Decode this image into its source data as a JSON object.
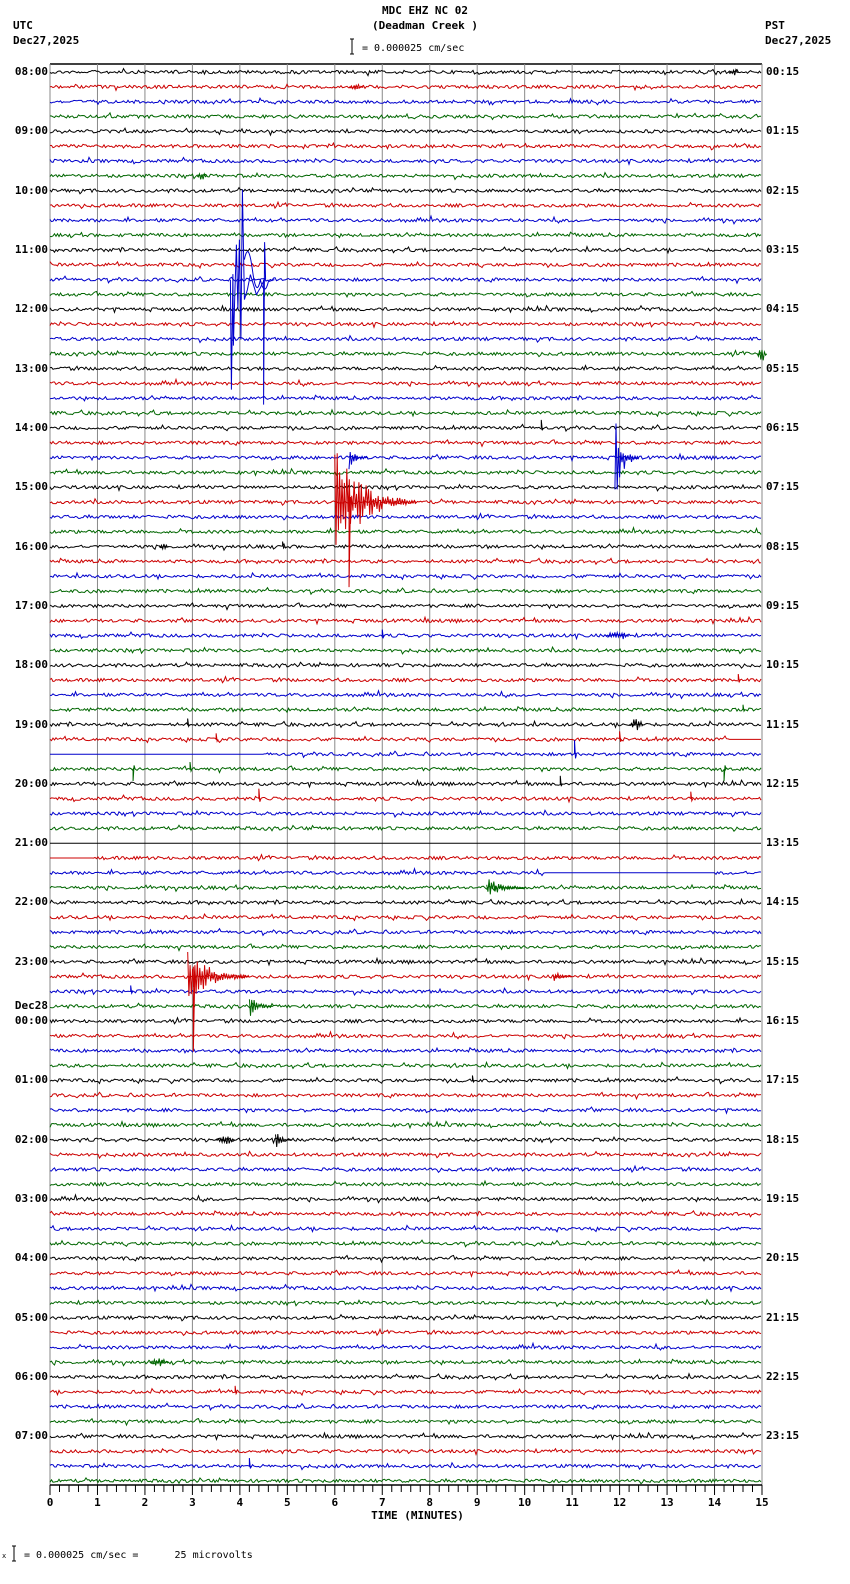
{
  "header": {
    "station": "MDC EHZ NC 02",
    "site": "(Deadman Creek )",
    "left_tz": "UTC",
    "left_date": "Dec27,2025",
    "right_tz": "PST",
    "right_date": "Dec27,2025",
    "scale_text": "= 0.000025 cm/sec"
  },
  "footer": {
    "scale_text": "= 0.000025 cm/sec =      25 microvolts",
    "scale_prefix": "x"
  },
  "chart_data": {
    "type": "line",
    "title": "MDC EHZ NC 02 (Deadman Creek )",
    "subtitle": "Helicorder 24-hour seismogram, Dec27,2025",
    "xlabel": "TIME (MINUTES)",
    "ylabel": "",
    "xlim": [
      0,
      15
    ],
    "x_ticks": [
      0,
      1,
      2,
      3,
      4,
      5,
      6,
      7,
      8,
      9,
      10,
      11,
      12,
      13,
      14,
      15
    ],
    "minor_ticks_per_minute": 4,
    "grid": true,
    "traces_per_hour": 4,
    "trace_colors": [
      "#000000",
      "#cc0000",
      "#0000cc",
      "#006600"
    ],
    "left_labels": [
      {
        "row": 0,
        "text": "08:00"
      },
      {
        "row": 4,
        "text": "09:00"
      },
      {
        "row": 8,
        "text": "10:00"
      },
      {
        "row": 12,
        "text": "11:00"
      },
      {
        "row": 16,
        "text": "12:00"
      },
      {
        "row": 20,
        "text": "13:00"
      },
      {
        "row": 24,
        "text": "14:00"
      },
      {
        "row": 28,
        "text": "15:00"
      },
      {
        "row": 32,
        "text": "16:00"
      },
      {
        "row": 36,
        "text": "17:00"
      },
      {
        "row": 40,
        "text": "18:00"
      },
      {
        "row": 44,
        "text": "19:00"
      },
      {
        "row": 48,
        "text": "20:00"
      },
      {
        "row": 52,
        "text": "21:00"
      },
      {
        "row": 56,
        "text": "22:00"
      },
      {
        "row": 60,
        "text": "23:00"
      },
      {
        "row": 64,
        "text": "00:00",
        "date": "Dec28"
      },
      {
        "row": 68,
        "text": "01:00"
      },
      {
        "row": 72,
        "text": "02:00"
      },
      {
        "row": 76,
        "text": "03:00"
      },
      {
        "row": 80,
        "text": "04:00"
      },
      {
        "row": 84,
        "text": "05:00"
      },
      {
        "row": 88,
        "text": "06:00"
      },
      {
        "row": 92,
        "text": "07:00"
      }
    ],
    "right_labels": [
      "00:15",
      "01:15",
      "02:15",
      "03:15",
      "04:15",
      "05:15",
      "06:15",
      "07:15",
      "08:15",
      "09:15",
      "10:15",
      "11:15",
      "12:15",
      "13:15",
      "14:15",
      "15:15",
      "16:15",
      "17:15",
      "18:15",
      "19:15",
      "20:15",
      "21:15",
      "22:15",
      "23:15"
    ],
    "row_count": 96,
    "events": [
      {
        "row": 1,
        "minute": 6.3,
        "amp": 3,
        "dur": 0.3,
        "type": "burst"
      },
      {
        "row": 0,
        "minute": 14.3,
        "amp": 4,
        "dur": 0.2,
        "type": "burst"
      },
      {
        "row": 7,
        "minute": 3.1,
        "amp": 4,
        "dur": 0.2,
        "type": "burst"
      },
      {
        "row": 14,
        "minute": 3.8,
        "amp": -110,
        "dur": 0.9,
        "type": "teleseism"
      },
      {
        "row": 14,
        "minute": 4.5,
        "amp": -125,
        "dur": 0.4,
        "type": "spike"
      },
      {
        "row": 19,
        "minute": 14.9,
        "amp": 8,
        "dur": 0.2,
        "type": "burst"
      },
      {
        "row": 24,
        "minute": 10.35,
        "amp": 8,
        "dur": 0.1,
        "type": "spike"
      },
      {
        "row": 26,
        "minute": 11.9,
        "amp": -45,
        "dur": 0.5,
        "type": "local"
      },
      {
        "row": 26,
        "minute": 6.3,
        "amp": -14,
        "dur": 0.4,
        "type": "local"
      },
      {
        "row": 29,
        "minute": 6.0,
        "amp": 60,
        "dur": 1.7,
        "type": "local-large"
      },
      {
        "row": 29,
        "minute": 6.3,
        "amp": 85,
        "dur": 0.3,
        "type": "spike-down"
      },
      {
        "row": 32,
        "minute": 2.3,
        "amp": 4,
        "dur": 0.2,
        "type": "burst"
      },
      {
        "row": 32,
        "minute": 4.9,
        "amp": 5,
        "dur": 0.1,
        "type": "spike"
      },
      {
        "row": 38,
        "minute": 7.0,
        "amp": 6,
        "dur": 0.1,
        "type": "spike"
      },
      {
        "row": 38,
        "minute": 11.7,
        "amp": 5,
        "dur": 0.5,
        "type": "burst"
      },
      {
        "row": 41,
        "minute": 14.5,
        "amp": 6,
        "dur": 0.1,
        "type": "spike"
      },
      {
        "row": 43,
        "minute": 14.6,
        "amp": 5,
        "dur": 0.1,
        "type": "spike"
      },
      {
        "row": 44,
        "minute": 2.9,
        "amp": 6,
        "dur": 0.1,
        "type": "spike"
      },
      {
        "row": 44,
        "minute": 12.2,
        "amp": 6,
        "dur": 0.3,
        "type": "burst"
      },
      {
        "row": 45,
        "minute": 3.5,
        "amp": 6,
        "dur": 0.2,
        "type": "spike"
      },
      {
        "row": 45,
        "minute": 12.0,
        "amp": 8,
        "dur": 0.1,
        "type": "spike"
      },
      {
        "row": 46,
        "minute": 11.05,
        "amp": 14,
        "dur": 0.15,
        "type": "spike"
      },
      {
        "row": 47,
        "minute": 1.75,
        "amp": -12,
        "dur": 0.1,
        "type": "spike"
      },
      {
        "row": 47,
        "minute": 2.95,
        "amp": 7,
        "dur": 0.1,
        "type": "spike"
      },
      {
        "row": 47,
        "minute": 14.2,
        "amp": -12,
        "dur": 0.1,
        "type": "spike"
      },
      {
        "row": 48,
        "minute": 10.75,
        "amp": 8,
        "dur": 0.1,
        "type": "spike"
      },
      {
        "row": 49,
        "minute": 4.4,
        "amp": 10,
        "dur": 0.1,
        "type": "spike"
      },
      {
        "row": 49,
        "minute": 13.5,
        "amp": 7,
        "dur": 0.2,
        "type": "spike"
      },
      {
        "row": 55,
        "minute": 9.2,
        "amp": 12,
        "dur": 0.8,
        "type": "local"
      },
      {
        "row": 61,
        "minute": 2.9,
        "amp": 30,
        "dur": 1.3,
        "type": "local-large"
      },
      {
        "row": 61,
        "minute": 3.02,
        "amp": 75,
        "dur": 0.2,
        "type": "spike-down"
      },
      {
        "row": 61,
        "minute": 10.6,
        "amp": 8,
        "dur": 0.4,
        "type": "local"
      },
      {
        "row": 62,
        "minute": 1.7,
        "amp": 6,
        "dur": 0.1,
        "type": "spike"
      },
      {
        "row": 63,
        "minute": 4.2,
        "amp": 12,
        "dur": 0.5,
        "type": "local"
      },
      {
        "row": 68,
        "minute": 8.9,
        "amp": 5,
        "dur": 0.1,
        "type": "spike"
      },
      {
        "row": 72,
        "minute": 3.5,
        "amp": 5,
        "dur": 0.4,
        "type": "burst"
      },
      {
        "row": 72,
        "minute": 4.75,
        "amp": 10,
        "dur": 0.35,
        "type": "local"
      },
      {
        "row": 87,
        "minute": 2.1,
        "amp": 4,
        "dur": 0.4,
        "type": "burst"
      },
      {
        "row": 89,
        "minute": 3.9,
        "amp": 6,
        "dur": 0.1,
        "type": "spike"
      },
      {
        "row": 94,
        "minute": 4.2,
        "amp": 8,
        "dur": 0.1,
        "type": "spike"
      }
    ],
    "flat_segments": [
      {
        "row": 45,
        "from": 14.3,
        "to": 15.0
      },
      {
        "row": 46,
        "from": 0.0,
        "to": 4.5
      },
      {
        "row": 52,
        "from": 0.0,
        "to": 15.0,
        "partial": true
      },
      {
        "row": 53,
        "from": 0.0,
        "to": 0.9
      },
      {
        "row": 54,
        "from": 10.4,
        "to": 14.0
      }
    ]
  }
}
